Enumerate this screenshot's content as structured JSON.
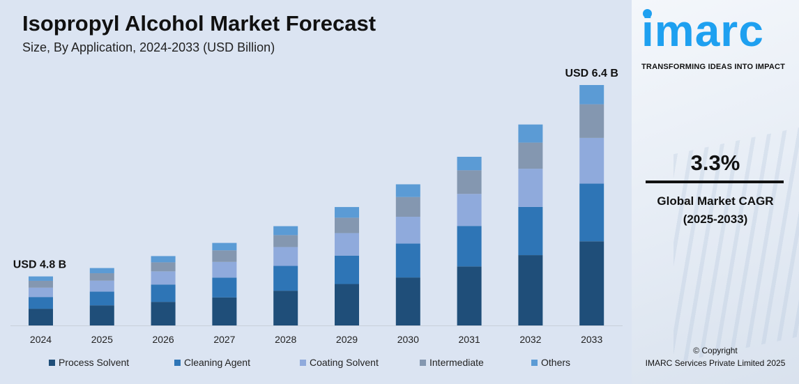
{
  "header": {
    "title": "Isopropyl Alcohol Market Forecast",
    "subtitle": "Size, By Application, 2024-2033 (USD Billion)"
  },
  "chart_data": {
    "type": "bar",
    "stacked": true,
    "title": "Isopropyl Alcohol Market Forecast",
    "subtitle": "Size, By Application, 2024-2033 (USD Billion)",
    "categories": [
      "2024",
      "2025",
      "2026",
      "2027",
      "2028",
      "2029",
      "2030",
      "2031",
      "2032",
      "2033"
    ],
    "ylim": [
      4.39,
      6.4
    ],
    "grid": false,
    "legend_position": "bottom",
    "totals": [
      4.8,
      4.87,
      4.97,
      5.08,
      5.22,
      5.38,
      5.57,
      5.8,
      6.07,
      6.4
    ],
    "annotations": [
      {
        "category": "2024",
        "text": "USD 4.8 B"
      },
      {
        "category": "2033",
        "text": "USD 6.4 B"
      }
    ],
    "series_share_percent": [
      {
        "name": "Process Solvent",
        "color": "#1f4e79",
        "values": [
          34,
          35,
          34,
          34,
          35,
          35,
          34,
          35,
          35,
          35
        ]
      },
      {
        "name": "Cleaning Agent",
        "color": "#2e75b6",
        "values": [
          24,
          24,
          25,
          24,
          25,
          24,
          24,
          24,
          24,
          24
        ]
      },
      {
        "name": "Coating Solvent",
        "color": "#8faadc",
        "values": [
          19,
          19,
          19,
          19,
          19,
          19,
          19,
          19,
          19,
          19
        ]
      },
      {
        "name": "Intermediate",
        "color": "#8497b0",
        "values": [
          14,
          13,
          13,
          14,
          12,
          13,
          14,
          14,
          13,
          14
        ]
      },
      {
        "name": "Others",
        "color": "#5b9bd5",
        "values": [
          9,
          9,
          9,
          9,
          9,
          9,
          9,
          8,
          9,
          8
        ]
      }
    ]
  },
  "brand": {
    "logo": "imarc",
    "tagline": "TRANSFORMING IDEAS INTO IMPACT",
    "color": "#1ea0f0"
  },
  "cagr": {
    "value": "3.3%",
    "label_line1": "Global Market CAGR",
    "label_line2": "(2025-2033)"
  },
  "footer": {
    "copyright": "© Copyright",
    "company": "IMARC Services Private Limited 2025"
  }
}
